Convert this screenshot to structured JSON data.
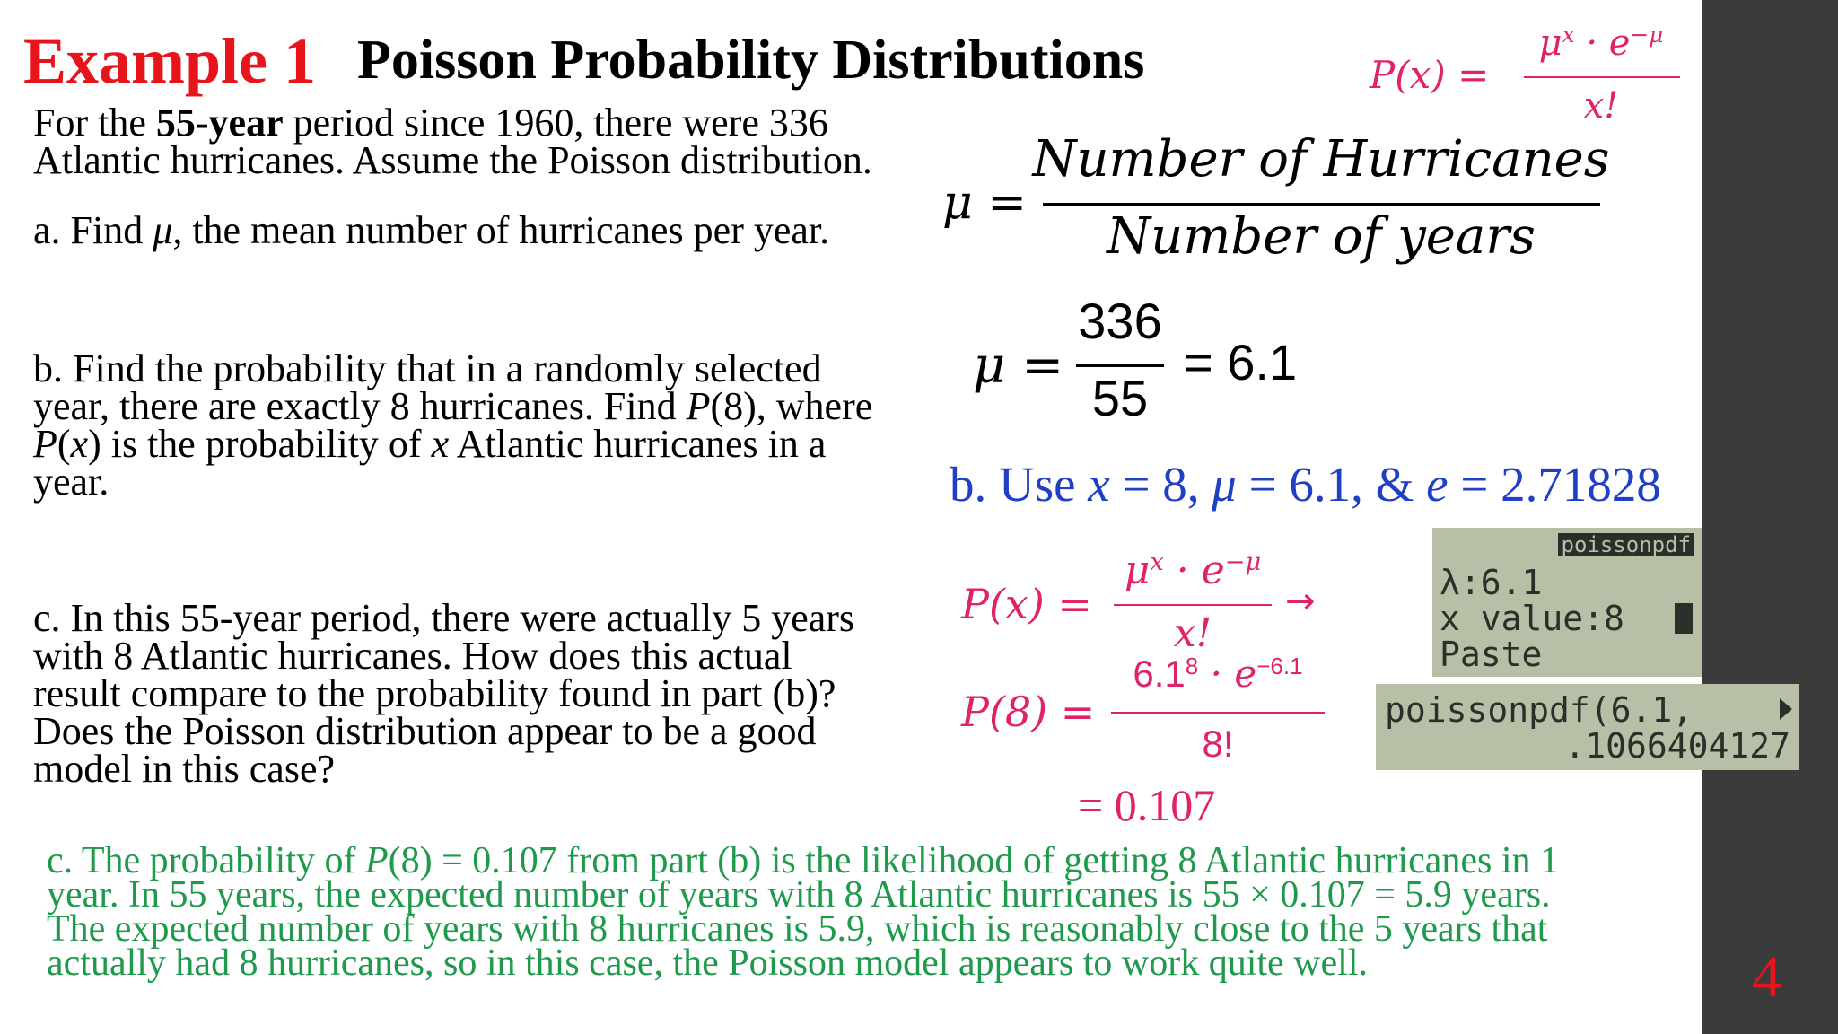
{
  "header": {
    "label": "Example 1",
    "title": "Poisson Probability Distributions"
  },
  "top_formula": {
    "lhs": "P(x) =",
    "base": "μ",
    "exp": "x",
    "mid": " · e",
    "exp2": "−μ",
    "den": "x!"
  },
  "problem": {
    "intro": [
      "For the ",
      "55-year",
      " period since 1960, there were 336",
      "Atlantic hurricanes. Assume the Poisson distribution."
    ],
    "a": [
      "a. Find ",
      "μ",
      ", the mean number of hurricanes per year."
    ],
    "b": [
      "b. Find the probability that in a randomly selected",
      "year, there are exactly 8 hurricanes. Find ",
      "P",
      "(8), where",
      "P",
      "(",
      "x",
      ") is the probability of ",
      "x",
      " Atlantic hurricanes in a",
      "year."
    ],
    "c": [
      "c. In this 55-year period, there were actually 5 years",
      "with 8 Atlantic hurricanes. How does this actual",
      "result compare to the probability found in part (b)?",
      "Does the Poisson distribution appear to be a good",
      "model in this case?"
    ]
  },
  "mean_formula": {
    "lhs": "μ =",
    "num": "Number of Hurricanes",
    "den": "Number of years"
  },
  "mean_calc": {
    "lhs": "μ =",
    "num": "336",
    "den": "55",
    "rhs": "= 6.1"
  },
  "use": [
    "b. Use ",
    "x",
    " = 8, ",
    "μ",
    " = 6.1, & ",
    "e",
    " = 2.71828"
  ],
  "pmf": {
    "lhs": "P(x) =",
    "base": "μ",
    "exp": "x",
    "mid": " · e",
    "exp2": "−μ",
    "den": "x!",
    "arrow": "→"
  },
  "p8": {
    "lhs": "P(8) =",
    "base": "6.1",
    "exp": "8",
    "mid": " · e",
    "exp2": "−6.1",
    "den": "8!",
    "result": "= 0.107"
  },
  "calculator": {
    "screen1": [
      "poissonpdf",
      "λ:6.1",
      "x value:8",
      "Paste"
    ],
    "screen2": [
      "poissonpdf(6.1,",
      ".1066404127"
    ]
  },
  "answer_c": [
    "c. The probability of ",
    "P",
    "(8) = 0.107 from part (b) is the likelihood of getting 8 Atlantic hurricanes in 1",
    "year. In 55 years, the expected number of years with 8 Atlantic hurricanes is 55 × 0.107 = 5.9 years.",
    "The expected number of years with 8 hurricanes is 5.9, which is reasonably close to the 5 years that",
    "actually had 8 hurricanes, so in this case, the Poisson model appears to work quite well."
  ],
  "page_number": "4"
}
